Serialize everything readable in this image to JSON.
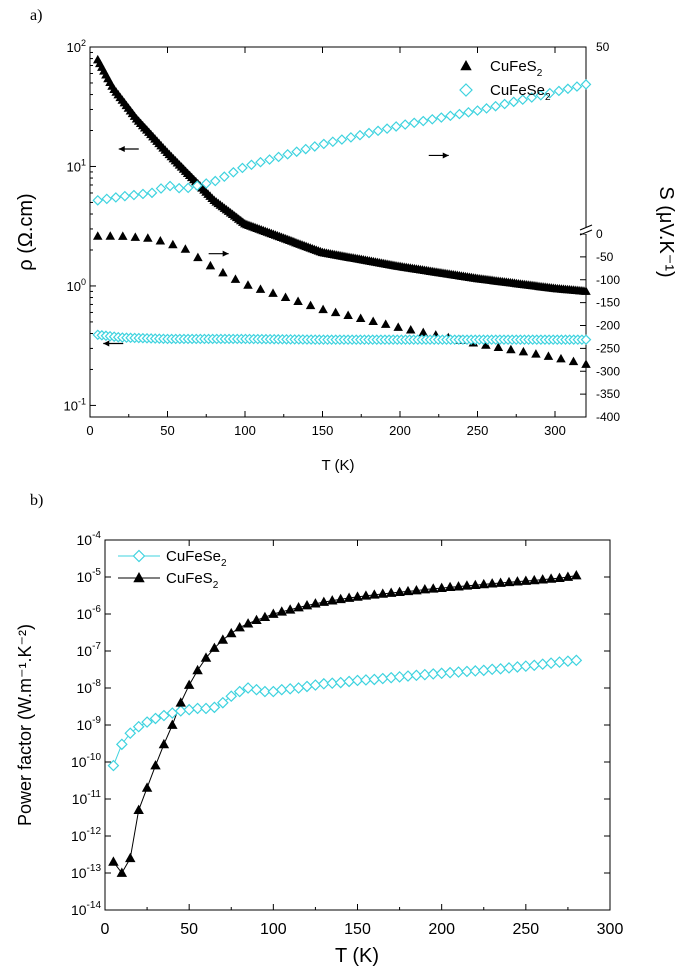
{
  "panels": [
    {
      "label": "a)"
    },
    {
      "label": "b)"
    }
  ],
  "colors": {
    "black": "#000000",
    "cyan": "#3FD3DF"
  },
  "chart_data": [
    {
      "type": "scatter",
      "panel": "a)",
      "xlabel": "T (K)",
      "ylabel_left": "ρ (Ω.cm)",
      "ylabel_right": "S (μV.K⁻¹)",
      "xlim": [
        0,
        320
      ],
      "ylim_left": [
        0.08,
        100
      ],
      "yscale_left": "log",
      "ylim_right": [
        -400,
        50
      ],
      "right_axis_break": "between 0 and 50",
      "x_ticks": [
        "0",
        "50",
        "100",
        "150",
        "200",
        "250",
        "300"
      ],
      "y_left_ticks": [
        {
          "value": 0.1,
          "base": "10",
          "exp": "-1"
        },
        {
          "value": 1,
          "base": "10",
          "exp": "0"
        },
        {
          "value": 10,
          "base": "10",
          "exp": "1"
        },
        {
          "value": 100,
          "base": "10",
          "exp": "2"
        }
      ],
      "y_right_ticks": [
        "50",
        "0",
        "-50",
        "-100",
        "-150",
        "-200",
        "-250",
        "-300",
        "-350",
        "-400"
      ],
      "legend_position": "top-right",
      "legend": [
        {
          "series": "CuFeS2",
          "base": "CuFeS",
          "sub": "2",
          "marker": "triangle",
          "color": "#000000"
        },
        {
          "series": "CuFeSe2",
          "base": "CuFeSe",
          "sub": "2",
          "marker": "diamond",
          "color": "#3FD3DF"
        }
      ],
      "series": [
        {
          "name": "CuFeS2",
          "quantity": "resistivity",
          "axis": "left",
          "marker": "triangle",
          "x": [
            5,
            15,
            30,
            50,
            80,
            100,
            150,
            200,
            250,
            300,
            320
          ],
          "y": [
            78,
            45,
            25,
            13,
            5.2,
            3.3,
            1.9,
            1.45,
            1.15,
            0.95,
            0.9
          ]
        },
        {
          "name": "CuFeS2",
          "quantity": "seebeck",
          "axis": "right",
          "marker": "triangle",
          "x": [
            5,
            20,
            40,
            60,
            80,
            100,
            150,
            200,
            250,
            300,
            320
          ],
          "y": [
            -5,
            -5,
            -10,
            -30,
            -75,
            -110,
            -165,
            -205,
            -240,
            -270,
            -285
          ]
        },
        {
          "name": "CuFeSe2",
          "quantity": "resistivity",
          "axis": "left",
          "marker": "diamond",
          "x": [
            5,
            20,
            50,
            100,
            150,
            200,
            250,
            300,
            320
          ],
          "y": [
            0.39,
            0.37,
            0.36,
            0.36,
            0.355,
            0.355,
            0.355,
            0.355,
            0.355
          ]
        },
        {
          "name": "CuFeSe2",
          "quantity": "seebeck",
          "axis": "right",
          "marker": "diamond",
          "x": [
            5,
            20,
            40,
            50,
            60,
            80,
            100,
            150,
            200,
            250,
            300,
            320
          ],
          "y": [
            9,
            10,
            11,
            13,
            12,
            14,
            18,
            24,
            29,
            33,
            38,
            40
          ]
        }
      ],
      "arrows": [
        {
          "x": 25,
          "y": 14,
          "axis": "left",
          "direction": "left"
        },
        {
          "x": 83,
          "y": -43,
          "axis": "right",
          "direction": "right"
        },
        {
          "x": 225,
          "y": 21,
          "axis": "right",
          "direction": "right"
        },
        {
          "x": 15,
          "y": 0.33,
          "axis": "left",
          "direction": "left"
        }
      ]
    },
    {
      "type": "line",
      "panel": "b)",
      "xlabel": "T (K)",
      "ylabel": "Power factor (W.m⁻¹.K⁻²)",
      "xlim": [
        0,
        300
      ],
      "ylim": [
        1e-14,
        0.0001
      ],
      "yscale": "log",
      "x_ticks": [
        "0",
        "50",
        "100",
        "150",
        "200",
        "250",
        "300"
      ],
      "y_ticks": [
        {
          "value": 1e-14,
          "base": "10",
          "exp": "-14"
        },
        {
          "value": 1e-13,
          "base": "10",
          "exp": "-13"
        },
        {
          "value": 1e-12,
          "base": "10",
          "exp": "-12"
        },
        {
          "value": 1e-11,
          "base": "10",
          "exp": "-11"
        },
        {
          "value": 1e-10,
          "base": "10",
          "exp": "-10"
        },
        {
          "value": 1e-09,
          "base": "10",
          "exp": "-9"
        },
        {
          "value": 1e-08,
          "base": "10",
          "exp": "-8"
        },
        {
          "value": 1e-07,
          "base": "10",
          "exp": "-7"
        },
        {
          "value": 1e-06,
          "base": "10",
          "exp": "-6"
        },
        {
          "value": 1e-05,
          "base": "10",
          "exp": "-5"
        },
        {
          "value": 0.0001,
          "base": "10",
          "exp": "-4"
        }
      ],
      "legend_position": "top-left",
      "legend": [
        {
          "series": "CuFeSe2",
          "base": "CuFeSe",
          "sub": "2",
          "marker": "diamond",
          "color": "#3FD3DF"
        },
        {
          "series": "CuFeS2",
          "base": "CuFeS",
          "sub": "2",
          "marker": "triangle",
          "color": "#000000"
        }
      ],
      "series": [
        {
          "name": "CuFeSe2",
          "marker": "diamond",
          "x": [
            5,
            10,
            15,
            20,
            25,
            30,
            35,
            40,
            45,
            50,
            55,
            60,
            65,
            70,
            75,
            80,
            85,
            90,
            95,
            100,
            105,
            110,
            115,
            120,
            125,
            130,
            135,
            140,
            145,
            150,
            155,
            160,
            165,
            170,
            175,
            180,
            185,
            190,
            195,
            200,
            205,
            210,
            215,
            220,
            225,
            230,
            235,
            240,
            245,
            250,
            255,
            260,
            265,
            270,
            275,
            280
          ],
          "y": [
            8e-11,
            3e-10,
            6e-10,
            9e-10,
            1.2e-09,
            1.5e-09,
            1.8e-09,
            2.1e-09,
            2.4e-09,
            2.6e-09,
            2.8e-09,
            2.8e-09,
            3e-09,
            4e-09,
            6e-09,
            8e-09,
            1e-08,
            9e-09,
            8e-09,
            8e-09,
            9e-09,
            9.5e-09,
            1e-08,
            1.1e-08,
            1.2e-08,
            1.3e-08,
            1.35e-08,
            1.4e-08,
            1.5e-08,
            1.6e-08,
            1.65e-08,
            1.7e-08,
            1.8e-08,
            1.9e-08,
            2e-08,
            2.1e-08,
            2.2e-08,
            2.3e-08,
            2.4e-08,
            2.5e-08,
            2.6e-08,
            2.7e-08,
            2.8e-08,
            2.9e-08,
            3e-08,
            3.2e-08,
            3.3e-08,
            3.5e-08,
            3.7e-08,
            3.9e-08,
            4.1e-08,
            4.4e-08,
            4.7e-08,
            5e-08,
            5.3e-08,
            5.6e-08
          ]
        },
        {
          "name": "CuFeS2",
          "marker": "triangle",
          "x": [
            5,
            10,
            15,
            20,
            25,
            30,
            35,
            40,
            45,
            50,
            55,
            60,
            65,
            70,
            75,
            80,
            85,
            90,
            95,
            100,
            105,
            110,
            115,
            120,
            125,
            130,
            135,
            140,
            145,
            150,
            155,
            160,
            165,
            170,
            175,
            180,
            185,
            190,
            195,
            200,
            205,
            210,
            215,
            220,
            225,
            230,
            235,
            240,
            245,
            250,
            255,
            260,
            265,
            270,
            275,
            280
          ],
          "y": [
            2e-13,
            1e-13,
            2.5e-13,
            5e-12,
            2e-11,
            8e-11,
            3e-10,
            1e-09,
            4e-09,
            1.2e-08,
            3e-08,
            6.5e-08,
            1.2e-07,
            2e-07,
            3e-07,
            4.3e-07,
            5.5e-07,
            6.8e-07,
            8.2e-07,
            1e-06,
            1.15e-06,
            1.3e-06,
            1.5e-06,
            1.7e-06,
            1.9e-06,
            2.1e-06,
            2.3e-06,
            2.5e-06,
            2.7e-06,
            2.9e-06,
            3.1e-06,
            3.3e-06,
            3.5e-06,
            3.7e-06,
            3.9e-06,
            4.1e-06,
            4.3e-06,
            4.6e-06,
            4.8e-06,
            5e-06,
            5.3e-06,
            5.5e-06,
            5.8e-06,
            6e-06,
            6.3e-06,
            6.6e-06,
            6.9e-06,
            7.2e-06,
            7.5e-06,
            7.8e-06,
            8.1e-06,
            8.5e-06,
            8.9e-06,
            9.3e-06,
            1e-05,
            1.1e-05
          ]
        }
      ]
    }
  ]
}
